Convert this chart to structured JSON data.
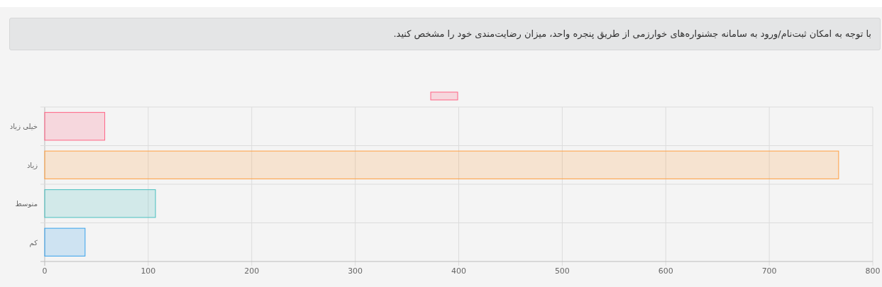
{
  "chart_data": {
    "type": "bar",
    "orientation": "horizontal",
    "title": "با توجه به امکان ثبت‌نام/ورود به سامانه جشنواره‌های خوارزمی از طریق پنجره واحد، میزان رضایت‌مندی خود را مشخص کنید.",
    "categories": [
      "خیلی زیاد",
      "زیاد",
      "متوسط",
      "کم"
    ],
    "values": [
      58,
      767,
      107,
      39
    ],
    "colors": [
      "#ff6384",
      "#ff9f40",
      "#4bc0c0",
      "#36a2eb"
    ],
    "xlim": [
      0,
      800
    ],
    "xticks": [
      0,
      100,
      200,
      300,
      400,
      500,
      600,
      700,
      800
    ],
    "grid": true
  }
}
